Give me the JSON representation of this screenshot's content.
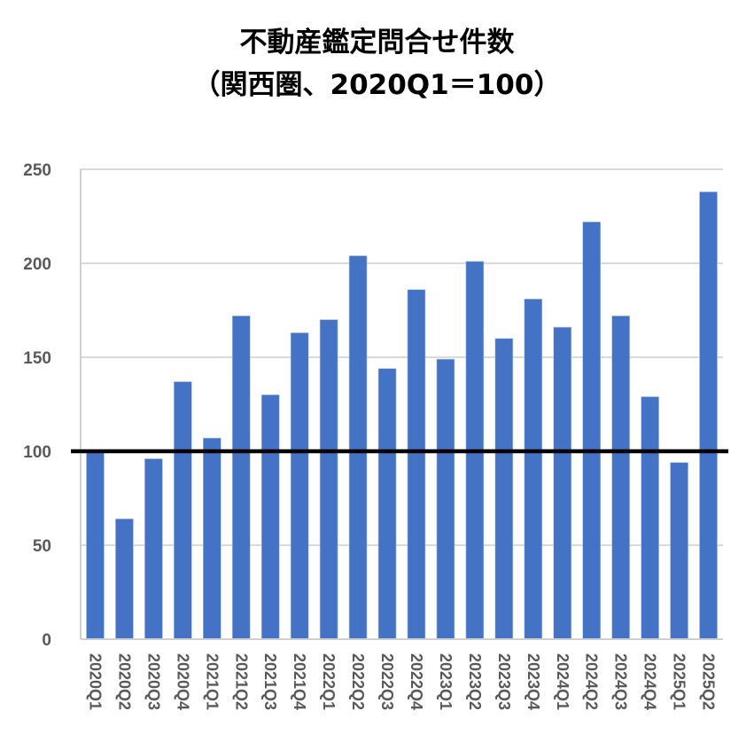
{
  "chart_data": {
    "type": "bar",
    "title": "不動産鑑定問合せ件数",
    "subtitle": "（関西圏、2020Q1＝100）",
    "xlabel": "",
    "ylabel": "",
    "ylim": [
      0,
      250
    ],
    "yticks": [
      0,
      50,
      100,
      150,
      200,
      250
    ],
    "grid": true,
    "legend": null,
    "reference_line": {
      "y": 100,
      "color": "#000000"
    },
    "bar_color": "#4472C4",
    "categories": [
      "2020Q1",
      "2020Q2",
      "2020Q3",
      "2020Q4",
      "2021Q1",
      "2021Q2",
      "2021Q3",
      "2021Q4",
      "2022Q1",
      "2022Q2",
      "2022Q3",
      "2022Q4",
      "2023Q1",
      "2023Q2",
      "2023Q3",
      "2023Q4",
      "2024Q1",
      "2024Q2",
      "2024Q3",
      "2024Q4",
      "2025Q1",
      "2025Q2"
    ],
    "values": [
      100,
      64,
      96,
      137,
      107,
      172,
      130,
      163,
      170,
      204,
      144,
      186,
      149,
      201,
      160,
      181,
      166,
      222,
      172,
      129,
      94,
      238
    ]
  },
  "title": {
    "line1": "不動産鑑定問合せ件数",
    "line2": "（関西圏、2020Q1＝100）"
  }
}
